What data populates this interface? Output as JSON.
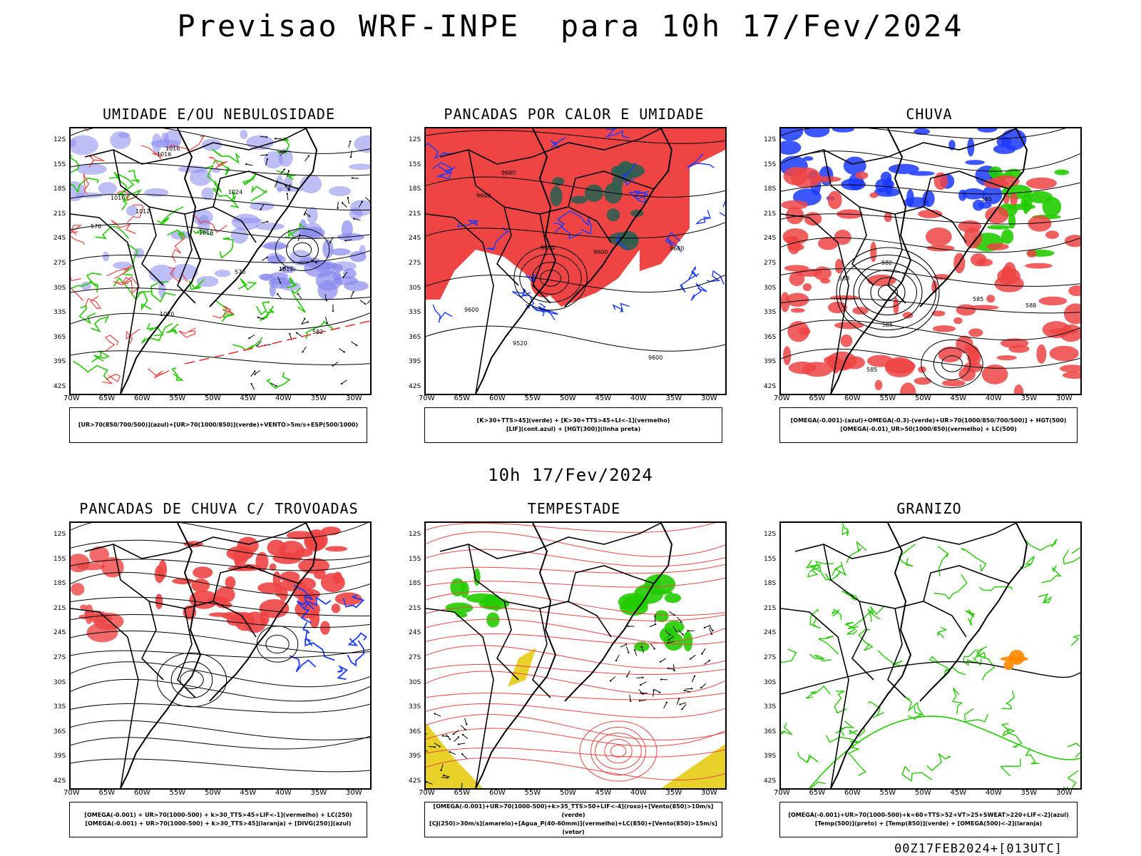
{
  "header": {
    "title": "Previsao WRF-INPE  para 10h 17/Fev/2024",
    "subtitle": "10h 17/Fev/2024",
    "stamp": "00Z17FEB2024+[013UTC]"
  },
  "axes": {
    "lat_labels": [
      "12S",
      "15S",
      "18S",
      "21S",
      "24S",
      "27S",
      "30S",
      "33S",
      "36S",
      "39S",
      "42S"
    ],
    "lon_labels": [
      "70W",
      "65W",
      "60W",
      "55W",
      "50W",
      "45W",
      "40W",
      "35W",
      "30W"
    ]
  },
  "colors": {
    "blue": "#8888ee",
    "green": "#22cc00",
    "red": "#ee4444",
    "dark_blue": "#1a3aff",
    "yellow": "#e8d22a",
    "teal": "#2f5e50",
    "orange": "#ff8800"
  },
  "panels": [
    {
      "id": "umidade",
      "title": "UMIDADE E/OU NEBULOSIDADE",
      "legend": [
        "[UR>70(850/700/500)](azul)+[UR>70(1000/850)](verde)+VENTO>5m/s+ESP(500/1000)"
      ],
      "contour_labels": [
        "1012",
        "1016",
        "1016",
        "1016",
        "1020",
        "1024",
        "576",
        "570",
        "582",
        "1012",
        "1016"
      ]
    },
    {
      "id": "pancadas_calor",
      "title": "PANCADAS POR CALOR E UMIDADE",
      "legend": [
        "[K>30+TTS>45](verde) + [K>30+TTS>45+LI<-1](vermelho)",
        "[LIF](cont.azul) + [HGT(300)](linha preta)"
      ],
      "contour_labels": [
        "9680",
        "9680",
        "9680",
        "9600",
        "9600",
        "9600",
        "9600",
        "9520"
      ]
    },
    {
      "id": "chuva",
      "title": "CHUVA",
      "legend": [
        "[OMEGA(-0.001)-(azul)+OMEGA(-0.3)-(verde)+UR>70(1000/850/700/500)] + HGT(500)",
        "[OMEGA(-0.01)_UR>50(1000/850)(vermelho) + LC(500)"
      ],
      "contour_labels": [
        "585",
        "585",
        "582",
        "585",
        "588",
        "585",
        "588"
      ]
    },
    {
      "id": "pancadas_trovoadas",
      "title": "PANCADAS DE CHUVA C/ TROVOADAS",
      "legend": [
        "[OMEGA(-0.001) + UR>70(1000-500) + k>30_TTS>45+LIF<-1](vermelho) + LC(250)",
        "[OMEGA(-0.001) + UR>70(1000-500) + k>30_TTS>45](laranja) + [DIVG(250)](azul)"
      ],
      "contour_labels": []
    },
    {
      "id": "tempestade",
      "title": "TEMPESTADE",
      "legend": [
        "[OMEGA(-0.001)+UR>70(1000-500)+k>35_TTS>50+LIF<-4](roxo)+[Vento(850)>10m/s](verde)",
        "[CJ(250)>30m/s](amarelo)+[Agua_P(40-60mm)](vermelho)+LC(850)+[Vento(850)>15m/s](vetor)"
      ],
      "contour_labels": []
    },
    {
      "id": "granizo",
      "title": "GRANIZO",
      "legend": [
        "[OMEGA(-0.001)+UR>70(1000-500)+k<60+TTS>52+VT>25+SWEAT>220+LIF<-2](azul)",
        "[Temp(500)](preto) + [Temp(850)](verde) + [OMEGA(500)<-2](laranja)"
      ],
      "contour_labels": []
    }
  ]
}
